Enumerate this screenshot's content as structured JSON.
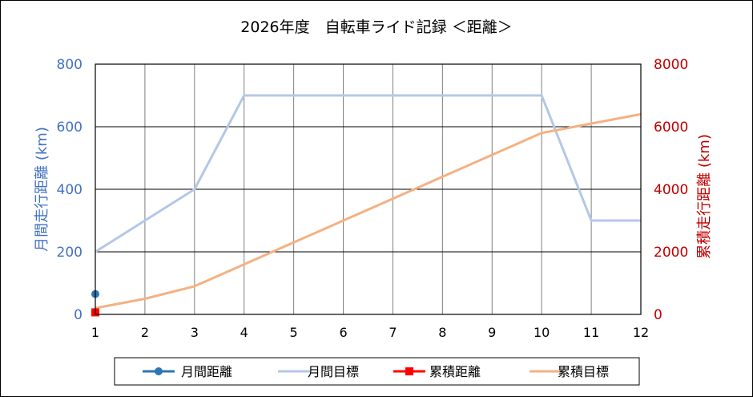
{
  "chart_data": {
    "type": "line",
    "title": "2026年度　自転車ライド記録 ＜距離＞",
    "x": [
      1,
      2,
      3,
      4,
      5,
      6,
      7,
      8,
      9,
      10,
      11,
      12
    ],
    "xlabel": "",
    "ylabel_left": "月間走行距離 (km)",
    "ylabel_right": "累積走行距離 (km)",
    "ylim_left": [
      0,
      800
    ],
    "ylim_right": [
      0,
      8000
    ],
    "xlim": [
      1,
      12
    ],
    "x_ticks": [
      "1",
      "2",
      "3",
      "4",
      "5",
      "6",
      "7",
      "8",
      "9",
      "10",
      "11",
      "12"
    ],
    "y_ticks_left": [
      "0",
      "200",
      "400",
      "600",
      "800"
    ],
    "y_ticks_right": [
      "0",
      "2000",
      "4000",
      "6000",
      "8000"
    ],
    "grid": true,
    "legend_position": "bottom",
    "series": [
      {
        "name": "月間距離",
        "axis": "left",
        "color": "#2e75b6",
        "marker": "circle",
        "x": [
          1
        ],
        "values": [
          65
        ]
      },
      {
        "name": "月間目標",
        "axis": "left",
        "color": "#b4c7e7",
        "marker": "none",
        "x": [
          1,
          2,
          3,
          4,
          5,
          6,
          7,
          8,
          9,
          10,
          11,
          12
        ],
        "values": [
          200,
          300,
          400,
          700,
          700,
          700,
          700,
          700,
          700,
          700,
          300,
          300
        ]
      },
      {
        "name": "累積距離",
        "axis": "right",
        "color": "#ff0000",
        "marker": "square",
        "x": [
          1
        ],
        "values": [
          65
        ]
      },
      {
        "name": "累積目標",
        "axis": "right",
        "color": "#f4b183",
        "marker": "none",
        "x": [
          1,
          2,
          3,
          4,
          5,
          6,
          7,
          8,
          9,
          10,
          11,
          12
        ],
        "values": [
          200,
          500,
          900,
          1600,
          2300,
          3000,
          3700,
          4400,
          5100,
          5800,
          6100,
          6400
        ]
      }
    ]
  },
  "colors": {
    "left_axis_text": "#4472c4",
    "right_axis_text": "#c00000",
    "grid": "#7f7f7f"
  }
}
